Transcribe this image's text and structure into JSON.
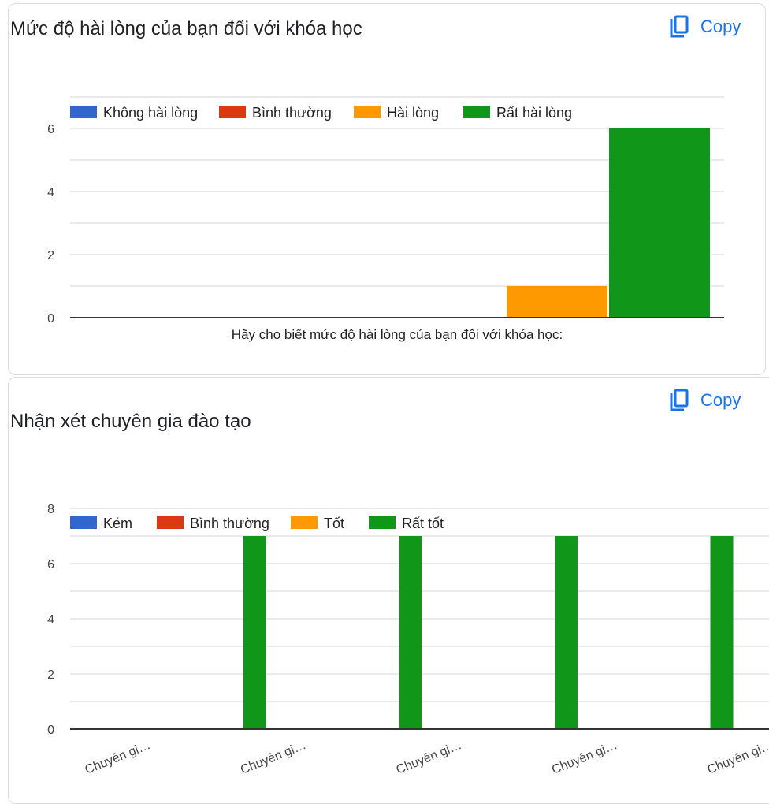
{
  "copy_label": "Copy",
  "icons": {
    "copy": "copy-icon"
  },
  "chart_data": [
    {
      "type": "bar",
      "title": "Mức độ hài lòng của bạn đối với khóa học",
      "xlabel": "Hãy cho biết mức độ hài lòng của bạn đối với khóa học:",
      "ylabel": "",
      "categories": [
        ""
      ],
      "ylim": [
        0,
        6
      ],
      "yticks": [
        0,
        2,
        4,
        6
      ],
      "grid": true,
      "legend_position": "top",
      "series": [
        {
          "name": "Không hài lòng",
          "color": "#3366cc",
          "values": [
            0
          ]
        },
        {
          "name": "Bình thường",
          "color": "#dc3912",
          "values": [
            0
          ]
        },
        {
          "name": "Hài lòng",
          "color": "#ff9900",
          "values": [
            1
          ]
        },
        {
          "name": "Rất hài lòng",
          "color": "#109618",
          "values": [
            6
          ]
        }
      ]
    },
    {
      "type": "bar",
      "title": "Nhận xét chuyên gia đào tạo",
      "xlabel": "",
      "ylabel": "",
      "categories": [
        "Chuyên gi…",
        "Chuyên gi…",
        "Chuyên gi…",
        "Chuyên gi…",
        "Chuyên gi…"
      ],
      "ylim": [
        0,
        8
      ],
      "yticks": [
        0,
        2,
        4,
        6,
        8
      ],
      "grid": true,
      "legend_position": "top",
      "series": [
        {
          "name": "Kém",
          "color": "#3366cc",
          "values": [
            0,
            0,
            0,
            0,
            0
          ]
        },
        {
          "name": "Bình thường",
          "color": "#dc3912",
          "values": [
            0,
            0,
            0,
            0,
            0
          ]
        },
        {
          "name": "Tốt",
          "color": "#ff9900",
          "values": [
            0,
            0,
            0,
            0,
            0
          ]
        },
        {
          "name": "Rất tốt",
          "color": "#109618",
          "values": [
            7,
            7,
            7,
            7,
            7
          ]
        }
      ]
    }
  ]
}
